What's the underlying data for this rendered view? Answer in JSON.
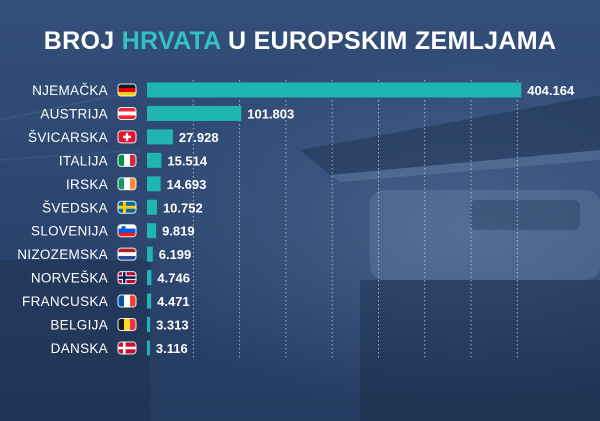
{
  "title": {
    "before": "BROJ ",
    "highlight": "HRVATA",
    "after": " U EUROPSKIM ZEMLJAMA"
  },
  "colors": {
    "bar": "#1fb5b1",
    "highlight": "#34c1c2",
    "text": "#ffffff",
    "grid": "rgba(255,255,255,0.55)"
  },
  "chart_data": {
    "type": "bar",
    "orientation": "horizontal",
    "title": "BROJ HRVATA U EUROPSKIM ZEMLJAMA",
    "xlabel": "",
    "ylabel": "",
    "xlim": [
      0,
      405000
    ],
    "grid": true,
    "legend": "none",
    "categories": [
      "NJEMAČKA",
      "AUSTRIJA",
      "ŠVICARSKA",
      "ITALIJA",
      "IRSKA",
      "ŠVEDSKA",
      "SLOVENIJA",
      "NIZOZEMSKA",
      "NORVEŠKA",
      "FRANCUSKA",
      "BELGIJA",
      "DANSKA"
    ],
    "values": [
      404164,
      101803,
      27928,
      15514,
      14693,
      10752,
      9819,
      6199,
      4746,
      4471,
      3313,
      3116
    ],
    "value_labels": [
      "404.164",
      "101.803",
      "27.928",
      "15.514",
      "14.693",
      "10.752",
      "9.819",
      "6.199",
      "4.746",
      "4.471",
      "3.313",
      "3.116"
    ],
    "flags": [
      "germany-flag-icon",
      "austria-flag-icon",
      "switzerland-flag-icon",
      "italy-flag-icon",
      "ireland-flag-icon",
      "sweden-flag-icon",
      "slovenia-flag-icon",
      "netherlands-flag-icon",
      "norway-flag-icon",
      "france-flag-icon",
      "belgium-flag-icon",
      "denmark-flag-icon"
    ]
  }
}
